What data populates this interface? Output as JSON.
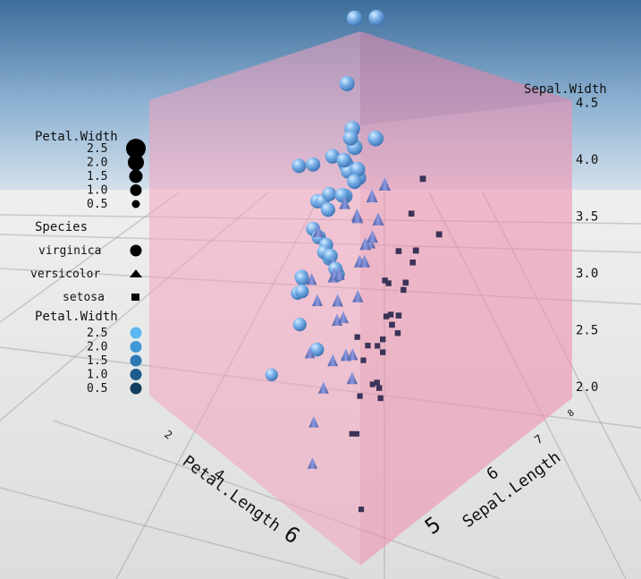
{
  "chart_data": {
    "type": "scatter",
    "dimensions": 3,
    "axes": {
      "x": {
        "label": "Petal.Length",
        "ticks": [
          "2",
          "4",
          "6"
        ],
        "range": [
          1,
          7
        ]
      },
      "z": {
        "label": "Sepal.Length",
        "ticks": [
          "5",
          "6",
          "7",
          "8"
        ],
        "range": [
          4.3,
          8
        ]
      },
      "y": {
        "label": "Sepal.Width",
        "ticks": [
          "2.0",
          "2.5",
          "3.0",
          "3.5",
          "4.0",
          "4.5"
        ],
        "range": [
          2.0,
          4.5
        ]
      }
    },
    "legends": [
      {
        "title": "Petal.Width",
        "mapping": "size",
        "entries": [
          "2.5",
          "2.0",
          "1.5",
          "1.0",
          "0.5"
        ]
      },
      {
        "title": "Species",
        "mapping": "shape",
        "entries": [
          "virginica",
          "versicolor",
          "setosa"
        ]
      },
      {
        "title": "Petal.Width",
        "mapping": "color",
        "entries": [
          "2.5",
          "2.0",
          "1.5",
          "1.0",
          "0.5"
        ]
      }
    ],
    "series": [
      {
        "name": "setosa",
        "marker": "cube",
        "color": "#3b3358",
        "points": [
          {
            "petal_length": 1.4,
            "sepal_length": 5.1,
            "sepal_width": 3.5
          },
          {
            "petal_length": 1.4,
            "sepal_length": 4.9,
            "sepal_width": 3.0
          },
          {
            "petal_length": 1.3,
            "sepal_length": 4.7,
            "sepal_width": 3.2
          },
          {
            "petal_length": 1.5,
            "sepal_length": 4.6,
            "sepal_width": 3.1
          },
          {
            "petal_length": 1.4,
            "sepal_length": 5.0,
            "sepal_width": 3.6
          },
          {
            "petal_length": 1.7,
            "sepal_length": 5.4,
            "sepal_width": 3.9
          },
          {
            "petal_length": 1.4,
            "sepal_length": 4.6,
            "sepal_width": 3.4
          },
          {
            "petal_length": 1.5,
            "sepal_length": 5.0,
            "sepal_width": 3.4
          },
          {
            "petal_length": 1.4,
            "sepal_length": 4.4,
            "sepal_width": 2.9
          },
          {
            "petal_length": 1.5,
            "sepal_length": 4.9,
            "sepal_width": 3.1
          },
          {
            "petal_length": 1.5,
            "sepal_length": 5.4,
            "sepal_width": 3.7
          },
          {
            "petal_length": 1.6,
            "sepal_length": 4.8,
            "sepal_width": 3.4
          },
          {
            "petal_length": 1.1,
            "sepal_length": 4.3,
            "sepal_width": 3.0
          },
          {
            "petal_length": 1.2,
            "sepal_length": 5.8,
            "sepal_width": 4.0
          },
          {
            "petal_length": 1.5,
            "sepal_length": 5.7,
            "sepal_width": 4.4
          },
          {
            "petal_length": 1.3,
            "sepal_length": 5.4,
            "sepal_width": 3.9
          },
          {
            "petal_length": 1.4,
            "sepal_length": 5.1,
            "sepal_width": 3.5
          },
          {
            "petal_length": 1.7,
            "sepal_length": 5.7,
            "sepal_width": 3.8
          },
          {
            "petal_length": 1.5,
            "sepal_length": 5.1,
            "sepal_width": 3.8
          },
          {
            "petal_length": 1.7,
            "sepal_length": 5.4,
            "sepal_width": 3.4
          },
          {
            "petal_length": 1.0,
            "sepal_length": 4.6,
            "sepal_width": 3.6
          },
          {
            "petal_length": 1.9,
            "sepal_length": 4.8,
            "sepal_width": 3.4
          },
          {
            "petal_length": 1.6,
            "sepal_length": 5.0,
            "sepal_width": 3.0
          },
          {
            "petal_length": 1.6,
            "sepal_length": 5.2,
            "sepal_width": 3.5
          },
          {
            "petal_length": 1.4,
            "sepal_length": 5.2,
            "sepal_width": 3.4
          },
          {
            "petal_length": 1.5,
            "sepal_length": 5.5,
            "sepal_width": 4.2
          },
          {
            "petal_length": 1.3,
            "sepal_length": 4.5,
            "sepal_width": 2.3
          },
          {
            "petal_length": 1.6,
            "sepal_length": 5.1,
            "sepal_width": 3.8
          },
          {
            "petal_length": 1.4,
            "sepal_length": 5.3,
            "sepal_width": 3.7
          },
          {
            "petal_length": 1.5,
            "sepal_length": 5.0,
            "sepal_width": 3.3
          }
        ]
      },
      {
        "name": "versicolor",
        "marker": "cone",
        "color": "#6a76c0",
        "points": [
          {
            "petal_length": 4.7,
            "sepal_length": 7.0,
            "sepal_width": 3.2
          },
          {
            "petal_length": 4.5,
            "sepal_length": 6.4,
            "sepal_width": 3.2
          },
          {
            "petal_length": 4.9,
            "sepal_length": 6.9,
            "sepal_width": 3.1
          },
          {
            "petal_length": 4.0,
            "sepal_length": 5.5,
            "sepal_width": 2.3
          },
          {
            "petal_length": 4.6,
            "sepal_length": 6.5,
            "sepal_width": 2.8
          },
          {
            "petal_length": 4.5,
            "sepal_length": 5.7,
            "sepal_width": 2.8
          },
          {
            "petal_length": 4.7,
            "sepal_length": 6.3,
            "sepal_width": 3.3
          },
          {
            "petal_length": 3.3,
            "sepal_length": 4.9,
            "sepal_width": 2.4
          },
          {
            "petal_length": 4.6,
            "sepal_length": 6.6,
            "sepal_width": 2.9
          },
          {
            "petal_length": 3.9,
            "sepal_length": 5.2,
            "sepal_width": 2.7
          },
          {
            "petal_length": 3.5,
            "sepal_length": 5.0,
            "sepal_width": 2.0
          },
          {
            "petal_length": 4.2,
            "sepal_length": 5.9,
            "sepal_width": 3.0
          },
          {
            "petal_length": 4.0,
            "sepal_length": 6.0,
            "sepal_width": 2.2
          },
          {
            "petal_length": 4.7,
            "sepal_length": 6.1,
            "sepal_width": 2.9
          },
          {
            "petal_length": 3.6,
            "sepal_length": 5.6,
            "sepal_width": 2.9
          },
          {
            "petal_length": 4.4,
            "sepal_length": 6.7,
            "sepal_width": 3.1
          },
          {
            "petal_length": 4.5,
            "sepal_length": 5.6,
            "sepal_width": 3.0
          },
          {
            "petal_length": 4.1,
            "sepal_length": 5.8,
            "sepal_width": 2.7
          },
          {
            "petal_length": 4.5,
            "sepal_length": 6.2,
            "sepal_width": 2.2
          },
          {
            "petal_length": 3.9,
            "sepal_length": 5.6,
            "sepal_width": 2.5
          },
          {
            "petal_length": 4.8,
            "sepal_length": 5.9,
            "sepal_width": 3.2
          },
          {
            "petal_length": 4.0,
            "sepal_length": 6.1,
            "sepal_width": 2.8
          },
          {
            "petal_length": 4.9,
            "sepal_length": 6.3,
            "sepal_width": 2.5
          },
          {
            "petal_length": 4.7,
            "sepal_length": 6.1,
            "sepal_width": 2.8
          },
          {
            "petal_length": 4.3,
            "sepal_length": 6.4,
            "sepal_width": 2.9
          },
          {
            "petal_length": 4.4,
            "sepal_length": 6.6,
            "sepal_width": 3.0
          },
          {
            "petal_length": 4.8,
            "sepal_length": 6.8,
            "sepal_width": 2.8
          },
          {
            "petal_length": 5.0,
            "sepal_length": 6.7,
            "sepal_width": 3.0
          },
          {
            "petal_length": 4.5,
            "sepal_length": 6.0,
            "sepal_width": 2.9
          },
          {
            "petal_length": 3.5,
            "sepal_length": 5.7,
            "sepal_width": 2.6
          }
        ]
      },
      {
        "name": "virginica",
        "marker": "sphere",
        "color": "#6aa7e6",
        "points": [
          {
            "petal_length": 6.0,
            "sepal_length": 6.3,
            "sepal_width": 3.3
          },
          {
            "petal_length": 5.1,
            "sepal_length": 5.8,
            "sepal_width": 2.7
          },
          {
            "petal_length": 5.9,
            "sepal_length": 7.1,
            "sepal_width": 3.0
          },
          {
            "petal_length": 5.6,
            "sepal_length": 6.3,
            "sepal_width": 2.9
          },
          {
            "petal_length": 5.8,
            "sepal_length": 6.5,
            "sepal_width": 3.0
          },
          {
            "petal_length": 6.6,
            "sepal_length": 7.6,
            "sepal_width": 3.0
          },
          {
            "petal_length": 4.5,
            "sepal_length": 4.9,
            "sepal_width": 2.5
          },
          {
            "petal_length": 6.3,
            "sepal_length": 7.3,
            "sepal_width": 2.9
          },
          {
            "petal_length": 5.8,
            "sepal_length": 6.7,
            "sepal_width": 2.5
          },
          {
            "petal_length": 6.1,
            "sepal_length": 7.2,
            "sepal_width": 3.6
          },
          {
            "petal_length": 5.1,
            "sepal_length": 6.5,
            "sepal_width": 3.2
          },
          {
            "petal_length": 5.3,
            "sepal_length": 6.4,
            "sepal_width": 2.7
          },
          {
            "petal_length": 5.5,
            "sepal_length": 6.8,
            "sepal_width": 3.0
          },
          {
            "petal_length": 5.0,
            "sepal_length": 5.7,
            "sepal_width": 2.5
          },
          {
            "petal_length": 5.1,
            "sepal_length": 5.8,
            "sepal_width": 2.8
          },
          {
            "petal_length": 5.3,
            "sepal_length": 6.4,
            "sepal_width": 3.2
          },
          {
            "petal_length": 5.5,
            "sepal_length": 6.5,
            "sepal_width": 3.0
          },
          {
            "petal_length": 6.7,
            "sepal_length": 7.7,
            "sepal_width": 3.8
          },
          {
            "petal_length": 6.9,
            "sepal_length": 7.7,
            "sepal_width": 2.6
          },
          {
            "petal_length": 5.0,
            "sepal_length": 6.0,
            "sepal_width": 2.2
          },
          {
            "petal_length": 5.7,
            "sepal_length": 6.9,
            "sepal_width": 3.2
          },
          {
            "petal_length": 4.9,
            "sepal_length": 5.6,
            "sepal_width": 2.8
          },
          {
            "petal_length": 6.7,
            "sepal_length": 7.7,
            "sepal_width": 2.8
          },
          {
            "petal_length": 4.9,
            "sepal_length": 6.3,
            "sepal_width": 2.7
          },
          {
            "petal_length": 5.7,
            "sepal_length": 6.7,
            "sepal_width": 3.3
          },
          {
            "petal_length": 6.0,
            "sepal_length": 7.2,
            "sepal_width": 3.2
          },
          {
            "petal_length": 4.8,
            "sepal_length": 6.2,
            "sepal_width": 2.8
          },
          {
            "petal_length": 4.9,
            "sepal_length": 6.1,
            "sepal_width": 3.0
          },
          {
            "petal_length": 5.6,
            "sepal_length": 6.4,
            "sepal_width": 2.8
          },
          {
            "petal_length": 5.8,
            "sepal_length": 7.2,
            "sepal_width": 3.0
          },
          {
            "petal_length": 6.1,
            "sepal_length": 7.4,
            "sepal_width": 2.8
          },
          {
            "petal_length": 6.4,
            "sepal_length": 7.9,
            "sepal_width": 3.8
          },
          {
            "petal_length": 5.6,
            "sepal_length": 6.4,
            "sepal_width": 2.8
          },
          {
            "petal_length": 5.1,
            "sepal_length": 6.3,
            "sepal_width": 2.8
          },
          {
            "petal_length": 5.6,
            "sepal_length": 6.1,
            "sepal_width": 2.6
          },
          {
            "petal_length": 6.1,
            "sepal_length": 7.7,
            "sepal_width": 3.0
          },
          {
            "petal_length": 5.6,
            "sepal_length": 6.3,
            "sepal_width": 3.4
          },
          {
            "petal_length": 5.5,
            "sepal_length": 6.4,
            "sepal_width": 3.1
          },
          {
            "petal_length": 4.8,
            "sepal_length": 6.0,
            "sepal_width": 3.0
          },
          {
            "petal_length": 5.4,
            "sepal_length": 6.9,
            "sepal_width": 3.1
          }
        ]
      }
    ],
    "colors": {
      "sky_top": "#3f6f9c",
      "sky_bottom": "#c9d9e8",
      "floor": "#e4e6e4",
      "panel": "#f2a0bb",
      "size_legend_marker": "#000000",
      "color_legend_low": "#0f3d5c",
      "color_legend_high": "#5fb8f2"
    }
  }
}
